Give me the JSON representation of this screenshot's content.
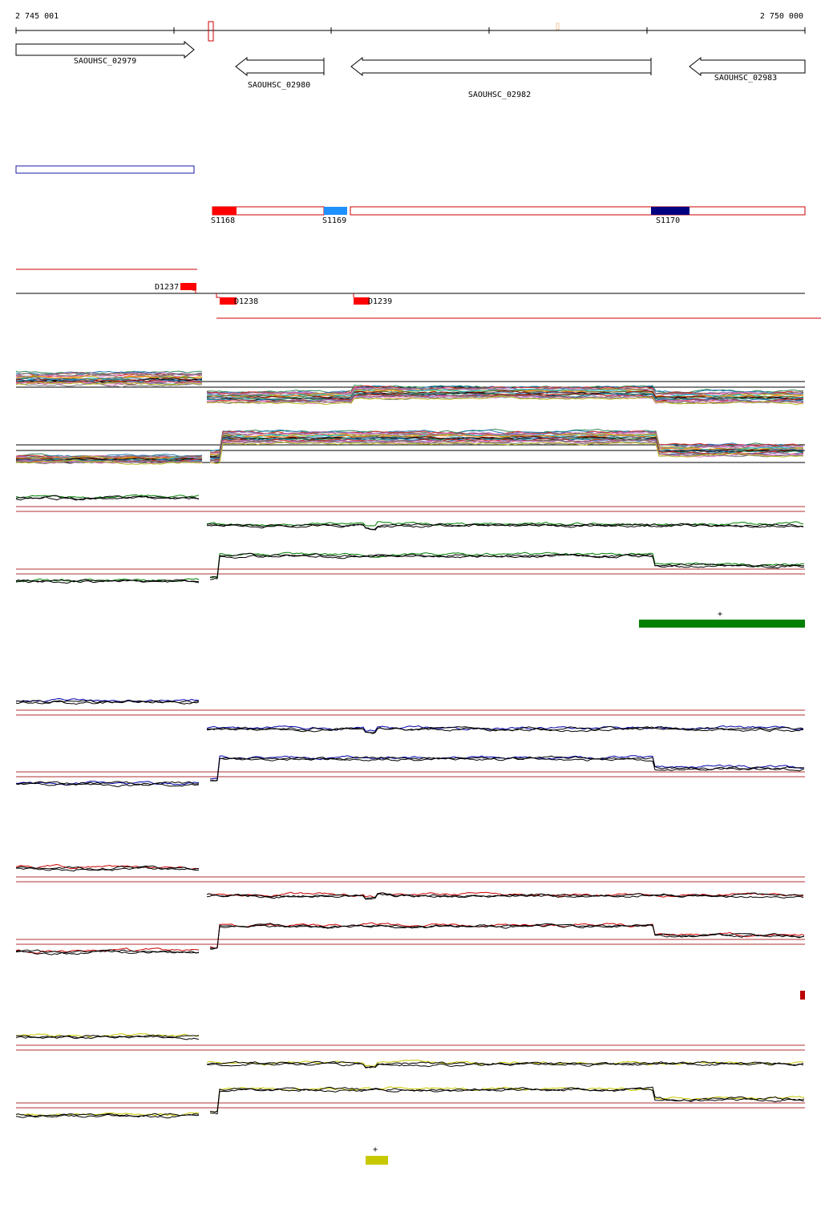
{
  "axis": {
    "start_label": "2 745 001",
    "end_label": "2 750 000"
  },
  "genes": [
    {
      "name": "SAOUHSC_02979",
      "strand": "+"
    },
    {
      "name": "SAOUHSC_02980",
      "strand": "-"
    },
    {
      "name": "SAOUHSC_02982",
      "strand": "-"
    },
    {
      "name": "SAOUHSC_02983",
      "strand": "-"
    }
  ],
  "segments": [
    {
      "label": "S1168",
      "color": "#ff0000"
    },
    {
      "label": "S1169",
      "color": "#1e90ff"
    },
    {
      "label": "S1170",
      "color": "#000080"
    }
  ],
  "deletions": [
    {
      "label": "D1237"
    },
    {
      "label": "D1238"
    },
    {
      "label": "D1239"
    }
  ],
  "condition_colors": [
    "#008000",
    "#0000aa",
    "#cc0000",
    "#c8c800"
  ],
  "strand_marks": [
    "+",
    "+"
  ]
}
